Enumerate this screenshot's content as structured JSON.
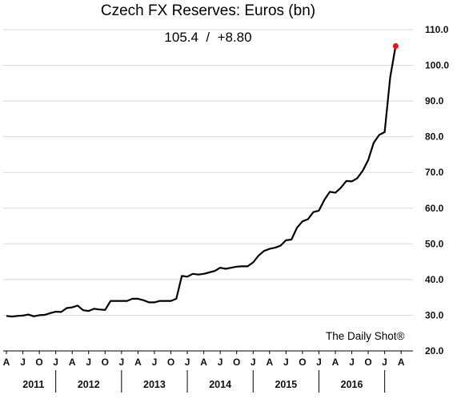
{
  "chart_data": {
    "type": "line",
    "title": "Czech FX Reserves: Euros (bn)",
    "annotation": "105.4  /  +8.80",
    "source": "The Daily Shot®",
    "xlabel": "",
    "ylabel": "",
    "ylim": [
      20.0,
      110.0
    ],
    "yticks": [
      "20.0",
      "30.0",
      "40.0",
      "50.0",
      "60.0",
      "70.0",
      "80.0",
      "90.0",
      "100.0",
      "110.0"
    ],
    "y_axis_side": "right",
    "grid": "horizontal",
    "month_ticks": [
      "A",
      "J",
      "O",
      "J",
      "A",
      "J",
      "O",
      "J",
      "A",
      "J",
      "O",
      "J",
      "A",
      "J",
      "O",
      "J",
      "A",
      "J",
      "O",
      "J",
      "A",
      "J",
      "O",
      "J",
      "A"
    ],
    "years": [
      "2011",
      "2012",
      "2013",
      "2014",
      "2015",
      "2016"
    ],
    "highlight_last_point_color": "#e8141b",
    "line_color": "#000000",
    "series": [
      {
        "x": [
          "2011-04",
          "2011-05",
          "2011-06",
          "2011-07",
          "2011-08",
          "2011-09",
          "2011-10",
          "2011-11",
          "2011-12",
          "2012-01",
          "2012-02",
          "2012-03",
          "2012-04",
          "2012-05",
          "2012-06",
          "2012-07",
          "2012-08",
          "2012-09",
          "2012-10",
          "2012-11",
          "2012-12",
          "2013-01",
          "2013-02",
          "2013-03",
          "2013-04",
          "2013-05",
          "2013-06",
          "2013-07",
          "2013-08",
          "2013-09",
          "2013-10",
          "2013-11",
          "2013-12",
          "2014-01",
          "2014-02",
          "2014-03",
          "2014-04",
          "2014-05",
          "2014-06",
          "2014-07",
          "2014-08",
          "2014-09",
          "2014-10",
          "2014-11",
          "2014-12",
          "2015-01",
          "2015-02",
          "2015-03",
          "2015-04",
          "2015-05",
          "2015-06",
          "2015-07",
          "2015-08",
          "2015-09",
          "2015-10",
          "2015-11",
          "2015-12",
          "2016-01",
          "2016-02",
          "2016-03",
          "2016-04",
          "2016-05",
          "2016-06",
          "2016-07",
          "2016-08",
          "2016-09",
          "2016-10",
          "2016-11",
          "2016-12",
          "2017-01",
          "2017-02",
          "2017-03"
        ],
        "values": [
          29.8,
          29.6,
          29.8,
          29.9,
          30.2,
          29.7,
          30.0,
          30.1,
          30.6,
          31.0,
          30.9,
          32.0,
          32.2,
          32.7,
          31.4,
          31.2,
          31.8,
          31.6,
          31.5,
          34.0,
          34.0,
          34.0,
          34.0,
          34.6,
          34.6,
          34.2,
          33.6,
          33.6,
          34.0,
          34.0,
          34.0,
          34.6,
          41.0,
          40.8,
          41.6,
          41.4,
          41.6,
          42.0,
          42.4,
          43.3,
          43.0,
          43.3,
          43.6,
          43.7,
          43.7,
          44.8,
          46.7,
          48.0,
          48.6,
          48.9,
          49.5,
          51.0,
          51.2,
          54.5,
          56.3,
          56.9,
          58.9,
          59.3,
          62.3,
          64.6,
          64.3,
          65.7,
          67.6,
          67.5,
          68.4,
          70.5,
          73.5,
          78.3,
          80.5,
          81.3,
          96.6,
          105.4
        ]
      }
    ]
  }
}
